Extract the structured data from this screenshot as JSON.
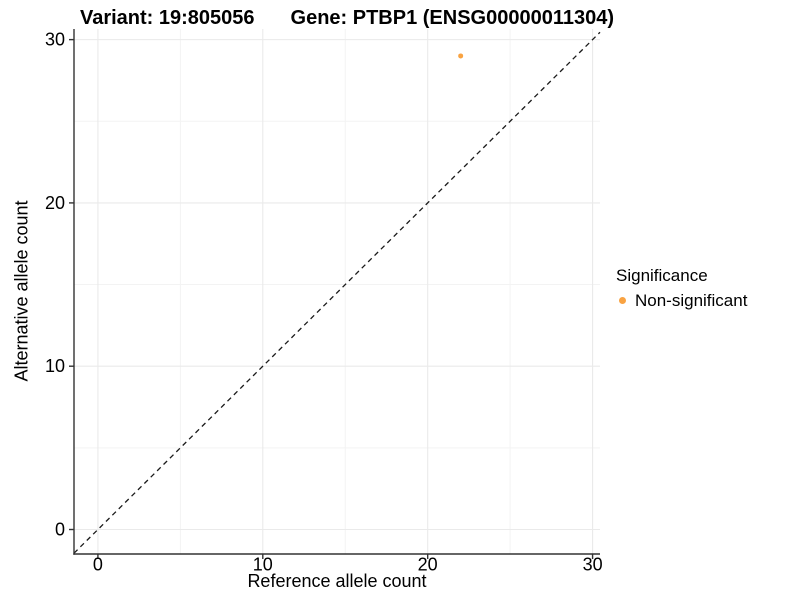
{
  "title": {
    "variant": "Variant: 19:805056",
    "gene": "Gene: PTBP1 (ENSG00000011304)"
  },
  "axes": {
    "x": {
      "label": "Reference allele count"
    },
    "y": {
      "label": "Alternative allele count"
    }
  },
  "legend": {
    "title": "Significance",
    "items": [
      {
        "label": "Non-significant",
        "color": "#F9A342",
        "marker": "dot-icon"
      }
    ]
  },
  "colors": {
    "background": "#FFFFFF",
    "point": "#F9A342",
    "axis": "#333333",
    "text": "#000000",
    "grid_major": "#EAEAEA",
    "grid_minor": "#F3F3F3",
    "reference_line": "#1A1A1A"
  },
  "chart_data": {
    "type": "scatter",
    "title": "Variant: 19:805056    Gene: PTBP1 (ENSG00000011304)",
    "xlabel": "Reference allele count",
    "ylabel": "Alternative allele count",
    "xlim": [
      -1.45,
      30.45
    ],
    "ylim": [
      -1.5,
      30.65
    ],
    "x_ticks": [
      0,
      10,
      20,
      30
    ],
    "y_ticks": [
      0,
      10,
      20,
      30
    ],
    "x_minor_ticks": [
      5,
      15,
      25
    ],
    "y_minor_ticks": [
      5,
      15,
      25
    ],
    "grid": true,
    "legend_position": "right",
    "legend_title": "Significance",
    "series": [
      {
        "name": "Non-significant",
        "color": "#F9A342",
        "marker_size_px": 5,
        "points": [
          {
            "x": 22,
            "y": 29
          }
        ]
      }
    ],
    "reference_line": {
      "type": "identity",
      "equation": "y = x",
      "style": "dashed",
      "x": [
        -1.45,
        30.45
      ],
      "y": [
        -1.45,
        30.45
      ]
    }
  }
}
